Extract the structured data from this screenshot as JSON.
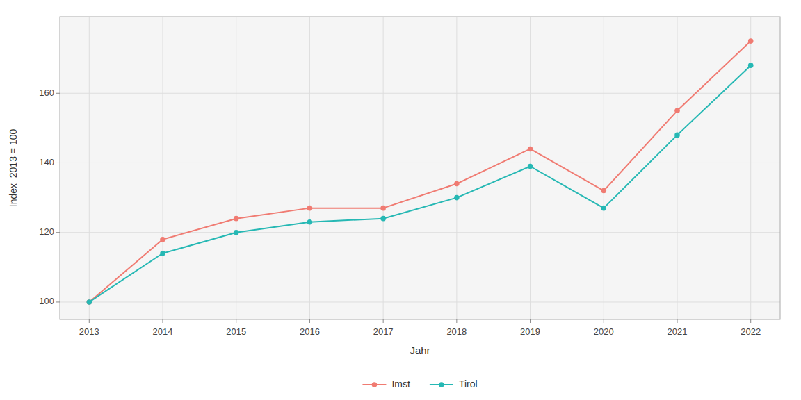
{
  "chart_data": {
    "type": "line",
    "x": [
      2013,
      2014,
      2015,
      2016,
      2017,
      2018,
      2019,
      2020,
      2021,
      2022
    ],
    "series": [
      {
        "name": "Imst",
        "color": "#F07B72",
        "marker": "circle",
        "values": [
          100,
          118,
          124,
          127,
          127,
          134,
          144,
          132,
          155,
          175
        ]
      },
      {
        "name": "Tirol",
        "color": "#26B8B4",
        "marker": "circle",
        "values": [
          100,
          114,
          120,
          123,
          124,
          130,
          139,
          127,
          148,
          168
        ]
      }
    ],
    "x_label": "Jahr",
    "y_label": "Index  2013 = 100",
    "xlim": [
      2012.6,
      2022.4
    ],
    "xticks": [
      2013,
      2014,
      2015,
      2016,
      2017,
      2018,
      2019,
      2020,
      2021,
      2022
    ],
    "ylim": [
      95,
      182
    ],
    "yticks": [
      100,
      120,
      140,
      160
    ],
    "grid": true,
    "legend": "bottom"
  }
}
